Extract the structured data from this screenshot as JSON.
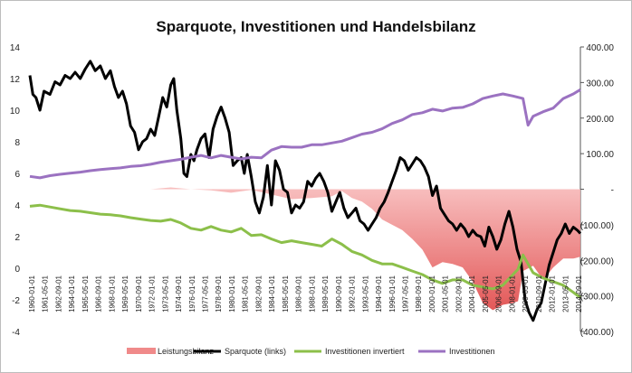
{
  "chart_data": {
    "type": "line",
    "title": "Sparquote, Investitionen und Handelsbilanz",
    "xlabel": "",
    "ylabel_left": "",
    "ylabel_right": "",
    "y_left_lim": [
      -4,
      14
    ],
    "y_left_ticks": [
      "14",
      "12",
      "10",
      "8",
      "6",
      "4",
      "2",
      "0",
      "-2",
      "-4"
    ],
    "y_right_lim": [
      -400,
      400
    ],
    "y_right_ticks": [
      "400.00",
      "300.00",
      "200.00",
      "100.00",
      "-",
      "(100.00)",
      "(200.00)",
      "(300.00)",
      "(400.00)"
    ],
    "x_ticks": [
      "1960-01-01",
      "1961-05-01",
      "1962-09-01",
      "1964-01-01",
      "1965-05-01",
      "1966-09-01",
      "1968-01-01",
      "1969-05-01",
      "1970-09-01",
      "1972-01-01",
      "1973-05-01",
      "1974-09-01",
      "1976-01-01",
      "1977-05-01",
      "1978-09-01",
      "1980-01-01",
      "1981-05-01",
      "1982-09-01",
      "1984-01-01",
      "1985-05-01",
      "1986-09-01",
      "1988-01-01",
      "1989-05-01",
      "1990-09-01",
      "1992-01-01",
      "1993-05-01",
      "1994-09-01",
      "1996-01-01",
      "1997-05-01",
      "1998-09-01",
      "2000-01-01",
      "2001-05-01",
      "2002-09-01",
      "2004-01-01",
      "2005-05-01",
      "2006-09-01",
      "2008-01-01",
      "2009-05-01",
      "2010-09-01",
      "2012-01-01",
      "2013-05-01",
      "2014-09-01"
    ],
    "x_range": [
      1960.0,
      2014.7
    ],
    "grid": false,
    "legend_position": "bottom",
    "series": [
      {
        "name": "Leistungsbilanz",
        "type": "area",
        "axis": "right",
        "color": "#e85c5c",
        "x": [
          1960,
          1962,
          1965,
          1968,
          1970,
          1972,
          1974,
          1976,
          1978,
          1980,
          1982,
          1984,
          1986,
          1988,
          1990,
          1991,
          1992,
          1993,
          1994,
          1995,
          1996,
          1997,
          1998,
          1999,
          2000,
          2001,
          2002,
          2003,
          2004,
          2005,
          2006,
          2007,
          2008,
          2008.5,
          2009,
          2010,
          2011,
          2012,
          2013,
          2014,
          2014.7
        ],
        "values": [
          0,
          0,
          0,
          0,
          0,
          0,
          5,
          0,
          -3,
          -10,
          -2,
          -15,
          -28,
          -25,
          -20,
          -5,
          -25,
          -35,
          -55,
          -85,
          -100,
          -115,
          -140,
          -170,
          -220,
          -205,
          -210,
          -220,
          -260,
          -320,
          -340,
          -325,
          -320,
          -315,
          -230,
          -215,
          -255,
          -220,
          -195,
          -195,
          -190
        ]
      },
      {
        "name": "Sparquote (links)",
        "type": "line",
        "axis": "left",
        "color": "#000000",
        "x": [
          1960,
          1960.3,
          1960.6,
          1961,
          1961.4,
          1962,
          1962.5,
          1963,
          1963.5,
          1964,
          1964.5,
          1965,
          1965.5,
          1966,
          1966.5,
          1967,
          1967.5,
          1968,
          1968.4,
          1968.8,
          1969.2,
          1969.6,
          1970,
          1970.4,
          1970.8,
          1971.2,
          1971.6,
          1972,
          1972.4,
          1972.8,
          1973.2,
          1973.6,
          1974,
          1974.3,
          1974.6,
          1975,
          1975.3,
          1975.6,
          1976,
          1976.3,
          1976.6,
          1977,
          1977.4,
          1977.8,
          1978.2,
          1978.6,
          1979,
          1979.4,
          1979.8,
          1980.2,
          1980.6,
          1981,
          1981.3,
          1981.6,
          1982,
          1982.4,
          1982.8,
          1983.2,
          1983.6,
          1984,
          1984.4,
          1984.8,
          1985.2,
          1985.6,
          1986,
          1986.4,
          1986.8,
          1987.2,
          1987.6,
          1988,
          1988.4,
          1988.8,
          1989.2,
          1989.6,
          1990,
          1990.4,
          1990.8,
          1991.2,
          1991.6,
          1992,
          1992.4,
          1992.8,
          1993.2,
          1993.6,
          1994,
          1994.4,
          1994.8,
          1995.2,
          1995.6,
          1996,
          1996.4,
          1996.8,
          1997.2,
          1997.6,
          1998,
          1998.4,
          1998.8,
          1999.2,
          1999.6,
          2000,
          2000.4,
          2000.8,
          2001.2,
          2001.6,
          2002,
          2002.4,
          2002.8,
          2003.2,
          2003.6,
          2004,
          2004.4,
          2004.8,
          2005.2,
          2005.6,
          2006,
          2006.4,
          2006.8,
          2007.2,
          2007.6,
          2008,
          2008.4,
          2008.8,
          2009.2,
          2009.6,
          2010,
          2010.4,
          2010.8,
          2011.2,
          2011.6,
          2012,
          2012.4,
          2012.8,
          2013.2,
          2013.6,
          2014,
          2014.4,
          2014.7
        ],
        "values": [
          12.2,
          11.0,
          10.8,
          10.0,
          11.2,
          11.0,
          11.8,
          11.6,
          12.2,
          12.0,
          12.4,
          12.0,
          12.6,
          13.1,
          12.5,
          12.8,
          12.0,
          12.5,
          11.5,
          10.8,
          11.2,
          10.4,
          9.0,
          8.6,
          7.5,
          8.0,
          8.2,
          8.8,
          8.4,
          9.6,
          10.8,
          10.2,
          11.6,
          12.0,
          10.0,
          8.2,
          6.0,
          5.8,
          7.2,
          6.8,
          7.5,
          8.2,
          8.5,
          7.0,
          8.8,
          9.6,
          10.2,
          9.5,
          8.6,
          6.5,
          6.8,
          7.0,
          6.0,
          7.2,
          5.8,
          4.2,
          3.5,
          4.5,
          6.5,
          4.0,
          6.8,
          6.2,
          5.0,
          4.8,
          3.5,
          4.0,
          3.8,
          4.2,
          5.5,
          5.2,
          5.7,
          6.0,
          5.5,
          4.8,
          3.6,
          4.2,
          4.8,
          3.8,
          3.2,
          3.5,
          3.8,
          3.0,
          2.8,
          2.4,
          2.8,
          3.2,
          3.8,
          4.2,
          4.8,
          5.5,
          6.2,
          7.0,
          6.8,
          6.2,
          6.6,
          7.0,
          6.8,
          6.4,
          5.8,
          4.6,
          5.2,
          3.8,
          3.4,
          3.0,
          2.8,
          2.4,
          2.8,
          2.5,
          2.0,
          2.4,
          2.1,
          2.0,
          1.4,
          2.6,
          2.0,
          1.2,
          1.8,
          2.8,
          3.6,
          2.6,
          1.2,
          0.4,
          -2.0,
          -2.8,
          -3.3,
          -2.6,
          -2.2,
          -1.0,
          0.2,
          1.0,
          1.8,
          2.2,
          2.8,
          2.2,
          2.6,
          2.4,
          2.2
        ]
      },
      {
        "name": "Investitionen invertiert",
        "type": "line",
        "axis": "right",
        "color": "#8cbf4a",
        "x": [
          1960,
          1961,
          1962,
          1963,
          1964,
          1965,
          1966,
          1967,
          1968,
          1969,
          1970,
          1971,
          1972,
          1973,
          1974,
          1974.5,
          1975,
          1976,
          1977,
          1978,
          1979,
          1980,
          1981,
          1982,
          1983,
          1984,
          1985,
          1986,
          1987,
          1988,
          1989,
          1990,
          1991,
          1992,
          1993,
          1994,
          1995,
          1996,
          1997,
          1998,
          1999,
          2000,
          2001,
          2002,
          2003,
          2004,
          2005,
          2006,
          2007,
          2008,
          2008.5,
          2009,
          2009.5,
          2010,
          2011,
          2012,
          2013,
          2014,
          2014.7
        ],
        "values": [
          -48,
          -45,
          -50,
          -55,
          -60,
          -62,
          -66,
          -70,
          -72,
          -75,
          -80,
          -84,
          -88,
          -90,
          -85,
          -90,
          -95,
          -110,
          -115,
          -105,
          -115,
          -120,
          -110,
          -130,
          -128,
          -140,
          -150,
          -145,
          -150,
          -155,
          -160,
          -140,
          -155,
          -175,
          -185,
          -200,
          -210,
          -210,
          -220,
          -230,
          -240,
          -255,
          -265,
          -255,
          -255,
          -270,
          -275,
          -280,
          -270,
          -240,
          -225,
          -185,
          -210,
          -235,
          -250,
          -260,
          -270,
          -290,
          -305
        ]
      },
      {
        "name": "Investitionen",
        "type": "line",
        "axis": "right",
        "color": "#9b72c1",
        "x": [
          1960,
          1961,
          1962,
          1963,
          1964,
          1965,
          1966,
          1967,
          1968,
          1969,
          1970,
          1971,
          1972,
          1973,
          1974,
          1975,
          1976,
          1977,
          1978,
          1979,
          1980,
          1981,
          1982,
          1983,
          1984,
          1985,
          1986,
          1987,
          1988,
          1989,
          1990,
          1991,
          1992,
          1993,
          1994,
          1995,
          1996,
          1997,
          1998,
          1999,
          2000,
          2001,
          2002,
          2003,
          2004,
          2005,
          2006,
          2007,
          2008,
          2009,
          2009.5,
          2010,
          2011,
          2012,
          2013,
          2014,
          2014.7
        ],
        "values": [
          36,
          32,
          38,
          42,
          45,
          48,
          52,
          55,
          58,
          60,
          64,
          66,
          70,
          76,
          80,
          84,
          90,
          95,
          88,
          95,
          90,
          85,
          90,
          88,
          110,
          120,
          118,
          118,
          125,
          125,
          130,
          135,
          145,
          155,
          160,
          170,
          185,
          195,
          210,
          215,
          225,
          220,
          228,
          230,
          240,
          255,
          262,
          268,
          262,
          255,
          180,
          205,
          218,
          228,
          255,
          268,
          280
        ]
      }
    ]
  },
  "legend": [
    {
      "label": "Leistungsbilanz",
      "color": "#f08a8a",
      "kind": "box"
    },
    {
      "label": "Sparquote (links)",
      "color": "#000000",
      "kind": "line"
    },
    {
      "label": "Investitionen invertiert",
      "color": "#8cbf4a",
      "kind": "line"
    },
    {
      "label": "Investitionen",
      "color": "#9b72c1",
      "kind": "line"
    }
  ]
}
